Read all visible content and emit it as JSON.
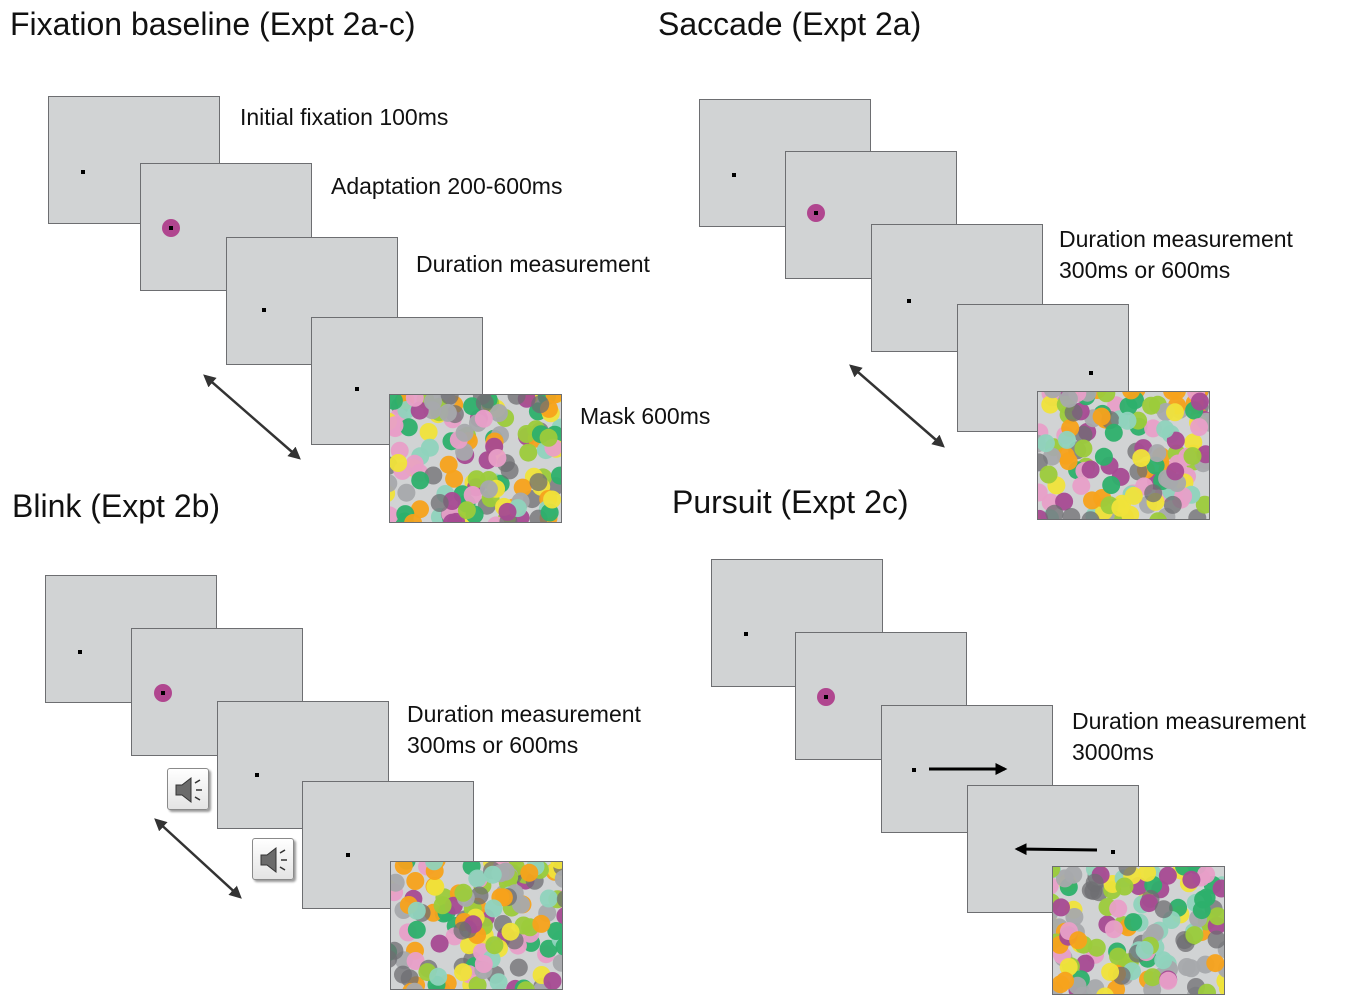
{
  "panels": {
    "fixation": {
      "title": "Fixation baseline (Expt 2a-c)",
      "labels": [
        "Initial fixation 100ms",
        "Adaptation 200-600ms",
        "Duration measurement",
        "Mask 600ms"
      ]
    },
    "saccade": {
      "title": "Saccade (Expt 2a)",
      "label_lines": [
        "Duration measurement",
        "300ms or 600ms"
      ]
    },
    "blink": {
      "title": "Blink (Expt 2b)",
      "label_lines": [
        "Duration measurement",
        "300ms or 600ms"
      ]
    },
    "pursuit": {
      "title": "Pursuit (Expt 2c)",
      "label_lines": [
        "Duration measurement",
        "3000ms"
      ]
    }
  },
  "icons": {
    "speaker": "speaker-icon",
    "time_arrow": "double-headed-arrow-icon",
    "pursuit_arrow": "arrow-icon"
  },
  "colors": {
    "screen": "#d1d3d4",
    "screen_border": "#6d6e71",
    "adaptor": "#b0468f",
    "mask_dots": [
      "#a64a92",
      "#2db06b",
      "#f0e33a",
      "#9ccb3b",
      "#8fd3bd",
      "#a7a9ac",
      "#f7a21b",
      "#e89fc8",
      "#6d6e71"
    ]
  }
}
